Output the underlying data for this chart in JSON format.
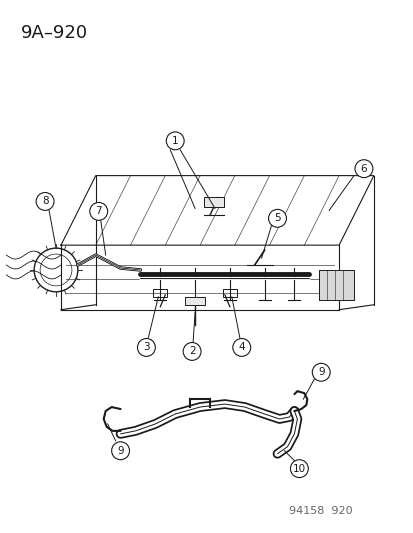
{
  "title": "9A–920",
  "footer": "94158  920",
  "bg_color": "#ffffff",
  "line_color": "#1a1a1a",
  "title_fontsize": 13,
  "footer_fontsize": 8,
  "label_fontsize": 7.5
}
